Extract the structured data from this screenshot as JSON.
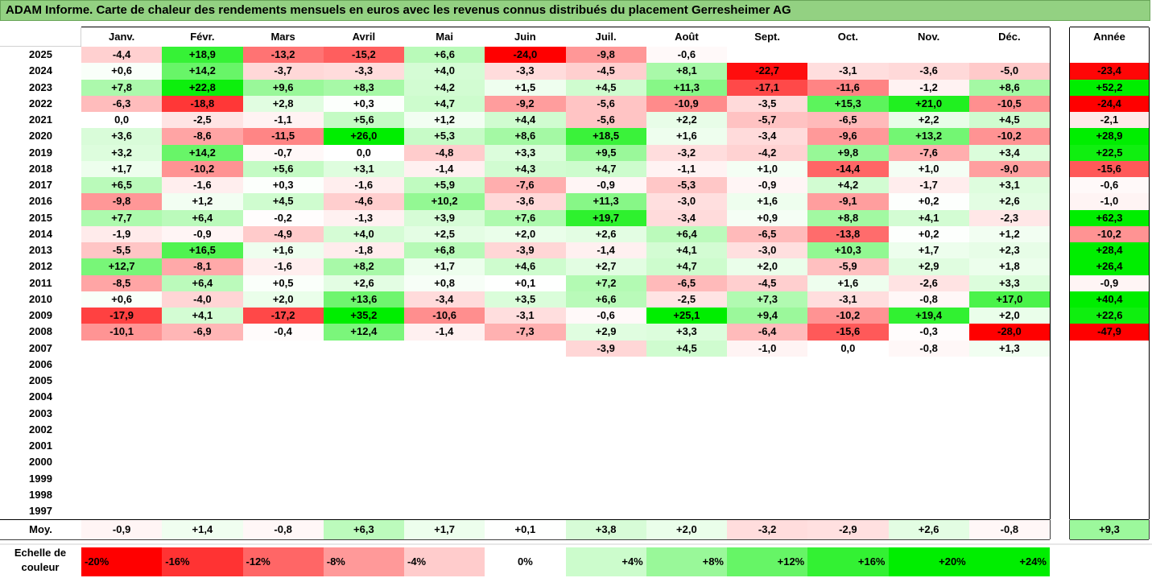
{
  "title": "ADAM Informe. Carte de chaleur des rendements mensuels en euros avec les revenus connus distribués du placement Gerresheimer AG",
  "chart_data": {
    "type": "heatmap",
    "months": [
      "Janv.",
      "Févr.",
      "Mars",
      "Avril",
      "Mai",
      "Juin",
      "Juil.",
      "Août",
      "Sept.",
      "Oct.",
      "Nov.",
      "Déc."
    ],
    "year_col_label": "Année",
    "avg_label": "Moy.",
    "rows": [
      {
        "year": "2025",
        "values": [
          "-4,4",
          "+18,9",
          "-13,2",
          "-15,2",
          "+6,6",
          "-24,0",
          "-9,8",
          "-0,6",
          "",
          "",
          "",
          ""
        ],
        "annual": ""
      },
      {
        "year": "2024",
        "values": [
          "+0,6",
          "+14,2",
          "-3,7",
          "-3,3",
          "+4,0",
          "-3,3",
          "-4,5",
          "+8,1",
          "-22,7",
          "-3,1",
          "-3,6",
          "-5,0"
        ],
        "annual": "-23,4"
      },
      {
        "year": "2023",
        "values": [
          "+7,8",
          "+22,8",
          "+9,6",
          "+8,3",
          "+4,2",
          "+1,5",
          "+4,5",
          "+11,3",
          "-17,1",
          "-11,6",
          "-1,2",
          "+8,6"
        ],
        "annual": "+52,2"
      },
      {
        "year": "2022",
        "values": [
          "-6,3",
          "-18,8",
          "+2,8",
          "+0,3",
          "+4,7",
          "-9,2",
          "-5,6",
          "-10,9",
          "-3,5",
          "+15,3",
          "+21,0",
          "-10,5"
        ],
        "annual": "-24,4"
      },
      {
        "year": "2021",
        "values": [
          "0,0",
          "-2,5",
          "-1,1",
          "+5,6",
          "+1,2",
          "+4,4",
          "-5,6",
          "+2,2",
          "-5,7",
          "-6,5",
          "+2,2",
          "+4,5"
        ],
        "annual": "-2,1"
      },
      {
        "year": "2020",
        "values": [
          "+3,6",
          "-8,6",
          "-11,5",
          "+26,0",
          "+5,3",
          "+8,6",
          "+18,5",
          "+1,6",
          "-3,4",
          "-9,6",
          "+13,2",
          "-10,2"
        ],
        "annual": "+28,9"
      },
      {
        "year": "2019",
        "values": [
          "+3,2",
          "+14,2",
          "-0,7",
          "0,0",
          "-4,8",
          "+3,3",
          "+9,5",
          "-3,2",
          "-4,2",
          "+9,8",
          "-7,6",
          "+3,4"
        ],
        "annual": "+22,5"
      },
      {
        "year": "2018",
        "values": [
          "+1,7",
          "-10,2",
          "+5,6",
          "+3,1",
          "-1,4",
          "+4,3",
          "+4,7",
          "-1,1",
          "+1,0",
          "-14,4",
          "+1,0",
          "-9,0"
        ],
        "annual": "-15,6"
      },
      {
        "year": "2017",
        "values": [
          "+6,5",
          "-1,6",
          "+0,3",
          "-1,6",
          "+5,9",
          "-7,6",
          "-0,9",
          "-5,3",
          "-0,9",
          "+4,2",
          "-1,7",
          "+3,1"
        ],
        "annual": "-0,6"
      },
      {
        "year": "2016",
        "values": [
          "-9,8",
          "+1,2",
          "+4,5",
          "-4,6",
          "+10,2",
          "-3,6",
          "+11,3",
          "-3,0",
          "+1,6",
          "-9,1",
          "+0,2",
          "+2,6"
        ],
        "annual": "-1,0"
      },
      {
        "year": "2015",
        "values": [
          "+7,7",
          "+6,4",
          "-0,2",
          "-1,3",
          "+3,9",
          "+7,6",
          "+19,7",
          "-3,4",
          "+0,9",
          "+8,8",
          "+4,1",
          "-2,3"
        ],
        "annual": "+62,3"
      },
      {
        "year": "2014",
        "values": [
          "-1,9",
          "-0,9",
          "-4,9",
          "+4,0",
          "+2,5",
          "+2,0",
          "+2,6",
          "+6,4",
          "-6,5",
          "-13,8",
          "+0,2",
          "+1,2"
        ],
        "annual": "-10,2"
      },
      {
        "year": "2013",
        "values": [
          "-5,5",
          "+16,5",
          "+1,6",
          "-1,8",
          "+6,8",
          "-3,9",
          "-1,4",
          "+4,1",
          "-3,0",
          "+10,3",
          "+1,7",
          "+2,3"
        ],
        "annual": "+28,4"
      },
      {
        "year": "2012",
        "values": [
          "+12,7",
          "-8,1",
          "-1,6",
          "+8,2",
          "+1,7",
          "+4,6",
          "+2,7",
          "+4,7",
          "+2,0",
          "-5,9",
          "+2,9",
          "+1,8"
        ],
        "annual": "+26,4"
      },
      {
        "year": "2011",
        "values": [
          "-8,5",
          "+6,4",
          "+0,5",
          "+2,6",
          "+0,8",
          "+0,1",
          "+7,2",
          "-6,5",
          "-4,5",
          "+1,6",
          "-2,6",
          "+3,3"
        ],
        "annual": "-0,9"
      },
      {
        "year": "2010",
        "values": [
          "+0,6",
          "-4,0",
          "+2,0",
          "+13,6",
          "-3,4",
          "+3,5",
          "+6,6",
          "-2,5",
          "+7,3",
          "-3,1",
          "-0,8",
          "+17,0"
        ],
        "annual": "+40,4"
      },
      {
        "year": "2009",
        "values": [
          "-17,9",
          "+4,1",
          "-17,2",
          "+35,2",
          "-10,6",
          "-3,1",
          "-0,6",
          "+25,1",
          "+9,4",
          "-10,2",
          "+19,4",
          "+2,0"
        ],
        "annual": "+22,6"
      },
      {
        "year": "2008",
        "values": [
          "-10,1",
          "-6,9",
          "-0,4",
          "+12,4",
          "-1,4",
          "-7,3",
          "+2,9",
          "+3,3",
          "-6,4",
          "-15,6",
          "-0,3",
          "-28,0"
        ],
        "annual": "-47,9"
      },
      {
        "year": "2007",
        "values": [
          "",
          "",
          "",
          "",
          "",
          "",
          "-3,9",
          "+4,5",
          "-1,0",
          "0,0",
          "-0,8",
          "+1,3"
        ],
        "annual": ""
      },
      {
        "year": "2006",
        "values": [
          "",
          "",
          "",
          "",
          "",
          "",
          "",
          "",
          "",
          "",
          "",
          ""
        ],
        "annual": ""
      },
      {
        "year": "2005",
        "values": [
          "",
          "",
          "",
          "",
          "",
          "",
          "",
          "",
          "",
          "",
          "",
          ""
        ],
        "annual": ""
      },
      {
        "year": "2004",
        "values": [
          "",
          "",
          "",
          "",
          "",
          "",
          "",
          "",
          "",
          "",
          "",
          ""
        ],
        "annual": ""
      },
      {
        "year": "2003",
        "values": [
          "",
          "",
          "",
          "",
          "",
          "",
          "",
          "",
          "",
          "",
          "",
          ""
        ],
        "annual": ""
      },
      {
        "year": "2002",
        "values": [
          "",
          "",
          "",
          "",
          "",
          "",
          "",
          "",
          "",
          "",
          "",
          ""
        ],
        "annual": ""
      },
      {
        "year": "2001",
        "values": [
          "",
          "",
          "",
          "",
          "",
          "",
          "",
          "",
          "",
          "",
          "",
          ""
        ],
        "annual": ""
      },
      {
        "year": "2000",
        "values": [
          "",
          "",
          "",
          "",
          "",
          "",
          "",
          "",
          "",
          "",
          "",
          ""
        ],
        "annual": ""
      },
      {
        "year": "1999",
        "values": [
          "",
          "",
          "",
          "",
          "",
          "",
          "",
          "",
          "",
          "",
          "",
          ""
        ],
        "annual": ""
      },
      {
        "year": "1998",
        "values": [
          "",
          "",
          "",
          "",
          "",
          "",
          "",
          "",
          "",
          "",
          "",
          ""
        ],
        "annual": ""
      },
      {
        "year": "1997",
        "values": [
          "",
          "",
          "",
          "",
          "",
          "",
          "",
          "",
          "",
          "",
          "",
          ""
        ],
        "annual": ""
      }
    ],
    "averages": [
      "-0,9",
      "+1,4",
      "-0,8",
      "+6,3",
      "+1,7",
      "+0,1",
      "+3,8",
      "+2,0",
      "-3,2",
      "-2,9",
      "+2,6",
      "-0,8"
    ],
    "annual_average": "+9,3",
    "legend_label_line1": "Echelle de",
    "legend_label_line2": "couleur",
    "legend": [
      {
        "label": "-20%",
        "value": -20
      },
      {
        "label": "-16%",
        "value": -16
      },
      {
        "label": "-12%",
        "value": -12
      },
      {
        "label": "-8%",
        "value": -8
      },
      {
        "label": "-4%",
        "value": -4
      },
      {
        "label": "0%",
        "value": 0
      },
      {
        "label": "+4%",
        "value": 4
      },
      {
        "label": "+8%",
        "value": 8
      },
      {
        "label": "+12%",
        "value": 12
      },
      {
        "label": "+16%",
        "value": 16
      },
      {
        "label": "+20%",
        "value": 20
      },
      {
        "label": "+24%",
        "value": 24
      }
    ],
    "colors": {
      "negative_max": "#ff0000",
      "neutral": "#ffffff",
      "positive_max": "#00ee00",
      "title_bg": "#93d182"
    }
  }
}
